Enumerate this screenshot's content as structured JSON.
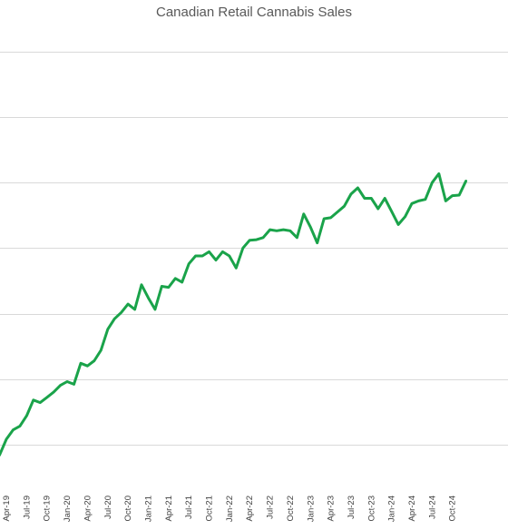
{
  "chart_data": {
    "type": "line",
    "title": "Canadian Retail Cannabis Sales",
    "xlabel": "",
    "ylabel": "",
    "grid": true,
    "gridlines": [
      0.5,
      0.625,
      0.75,
      0.875,
      1.0,
      1.125,
      1.25
    ],
    "ylim": [
      0.42,
      1.3
    ],
    "x_tick_labels": [
      "Apr-19",
      "Jul-19",
      "Oct-19",
      "Jan-20",
      "Apr-20",
      "Jul-20",
      "Oct-20",
      "Jan-21",
      "Apr-21",
      "Jul-21",
      "Oct-21",
      "Jan-22",
      "Apr-22",
      "Jul-22",
      "Oct-22",
      "Jan-23",
      "Apr-23",
      "Jul-23",
      "Oct-23",
      "Jan-24",
      "Apr-24",
      "Jul-24",
      "Oct-24"
    ],
    "color": "#1aa34a",
    "series": [
      {
        "name": "",
        "x": [
          "Mar-19",
          "Apr-19",
          "May-19",
          "Jun-19",
          "Jul-19",
          "Aug-19",
          "Sep-19",
          "Oct-19",
          "Nov-19",
          "Dec-19",
          "Jan-20",
          "Feb-20",
          "Mar-20",
          "Apr-20",
          "May-20",
          "Jun-20",
          "Jul-20",
          "Aug-20",
          "Sep-20",
          "Oct-20",
          "Nov-20",
          "Dec-20",
          "Jan-21",
          "Feb-21",
          "Mar-21",
          "Apr-21",
          "May-21",
          "Jun-21",
          "Jul-21",
          "Aug-21",
          "Sep-21",
          "Oct-21",
          "Nov-21",
          "Dec-21",
          "Jan-22",
          "Feb-22",
          "Mar-22",
          "Apr-22",
          "May-22",
          "Jun-22",
          "Jul-22",
          "Aug-22",
          "Sep-22",
          "Oct-22",
          "Nov-22",
          "Dec-22",
          "Jan-23",
          "Feb-23",
          "Mar-23",
          "Apr-23",
          "May-23",
          "Jun-23",
          "Jul-23",
          "Aug-23",
          "Sep-23",
          "Oct-23",
          "Nov-23",
          "Dec-23",
          "Jan-24",
          "Feb-24",
          "Mar-24",
          "Apr-24",
          "May-24",
          "Jun-24",
          "Jul-24",
          "Aug-24",
          "Sep-24",
          "Oct-24",
          "Nov-24",
          "Dec-24"
        ],
        "values": [
          0.48,
          0.51,
          0.528,
          0.535,
          0.555,
          0.585,
          0.58,
          0.59,
          0.6,
          0.613,
          0.62,
          0.615,
          0.655,
          0.65,
          0.66,
          0.68,
          0.72,
          0.74,
          0.752,
          0.768,
          0.758,
          0.805,
          0.78,
          0.758,
          0.802,
          0.8,
          0.817,
          0.81,
          0.845,
          0.86,
          0.86,
          0.868,
          0.852,
          0.868,
          0.86,
          0.837,
          0.875,
          0.89,
          0.891,
          0.895,
          0.91,
          0.908,
          0.91,
          0.908,
          0.895,
          0.94,
          0.915,
          0.885,
          0.931,
          0.933,
          0.944,
          0.955,
          0.978,
          0.99,
          0.97,
          0.97,
          0.95,
          0.97,
          0.945,
          0.92,
          0.935,
          0.96,
          0.965,
          0.968,
          1.0,
          1.017,
          0.965,
          0.975,
          0.976,
          1.003
        ]
      }
    ]
  }
}
